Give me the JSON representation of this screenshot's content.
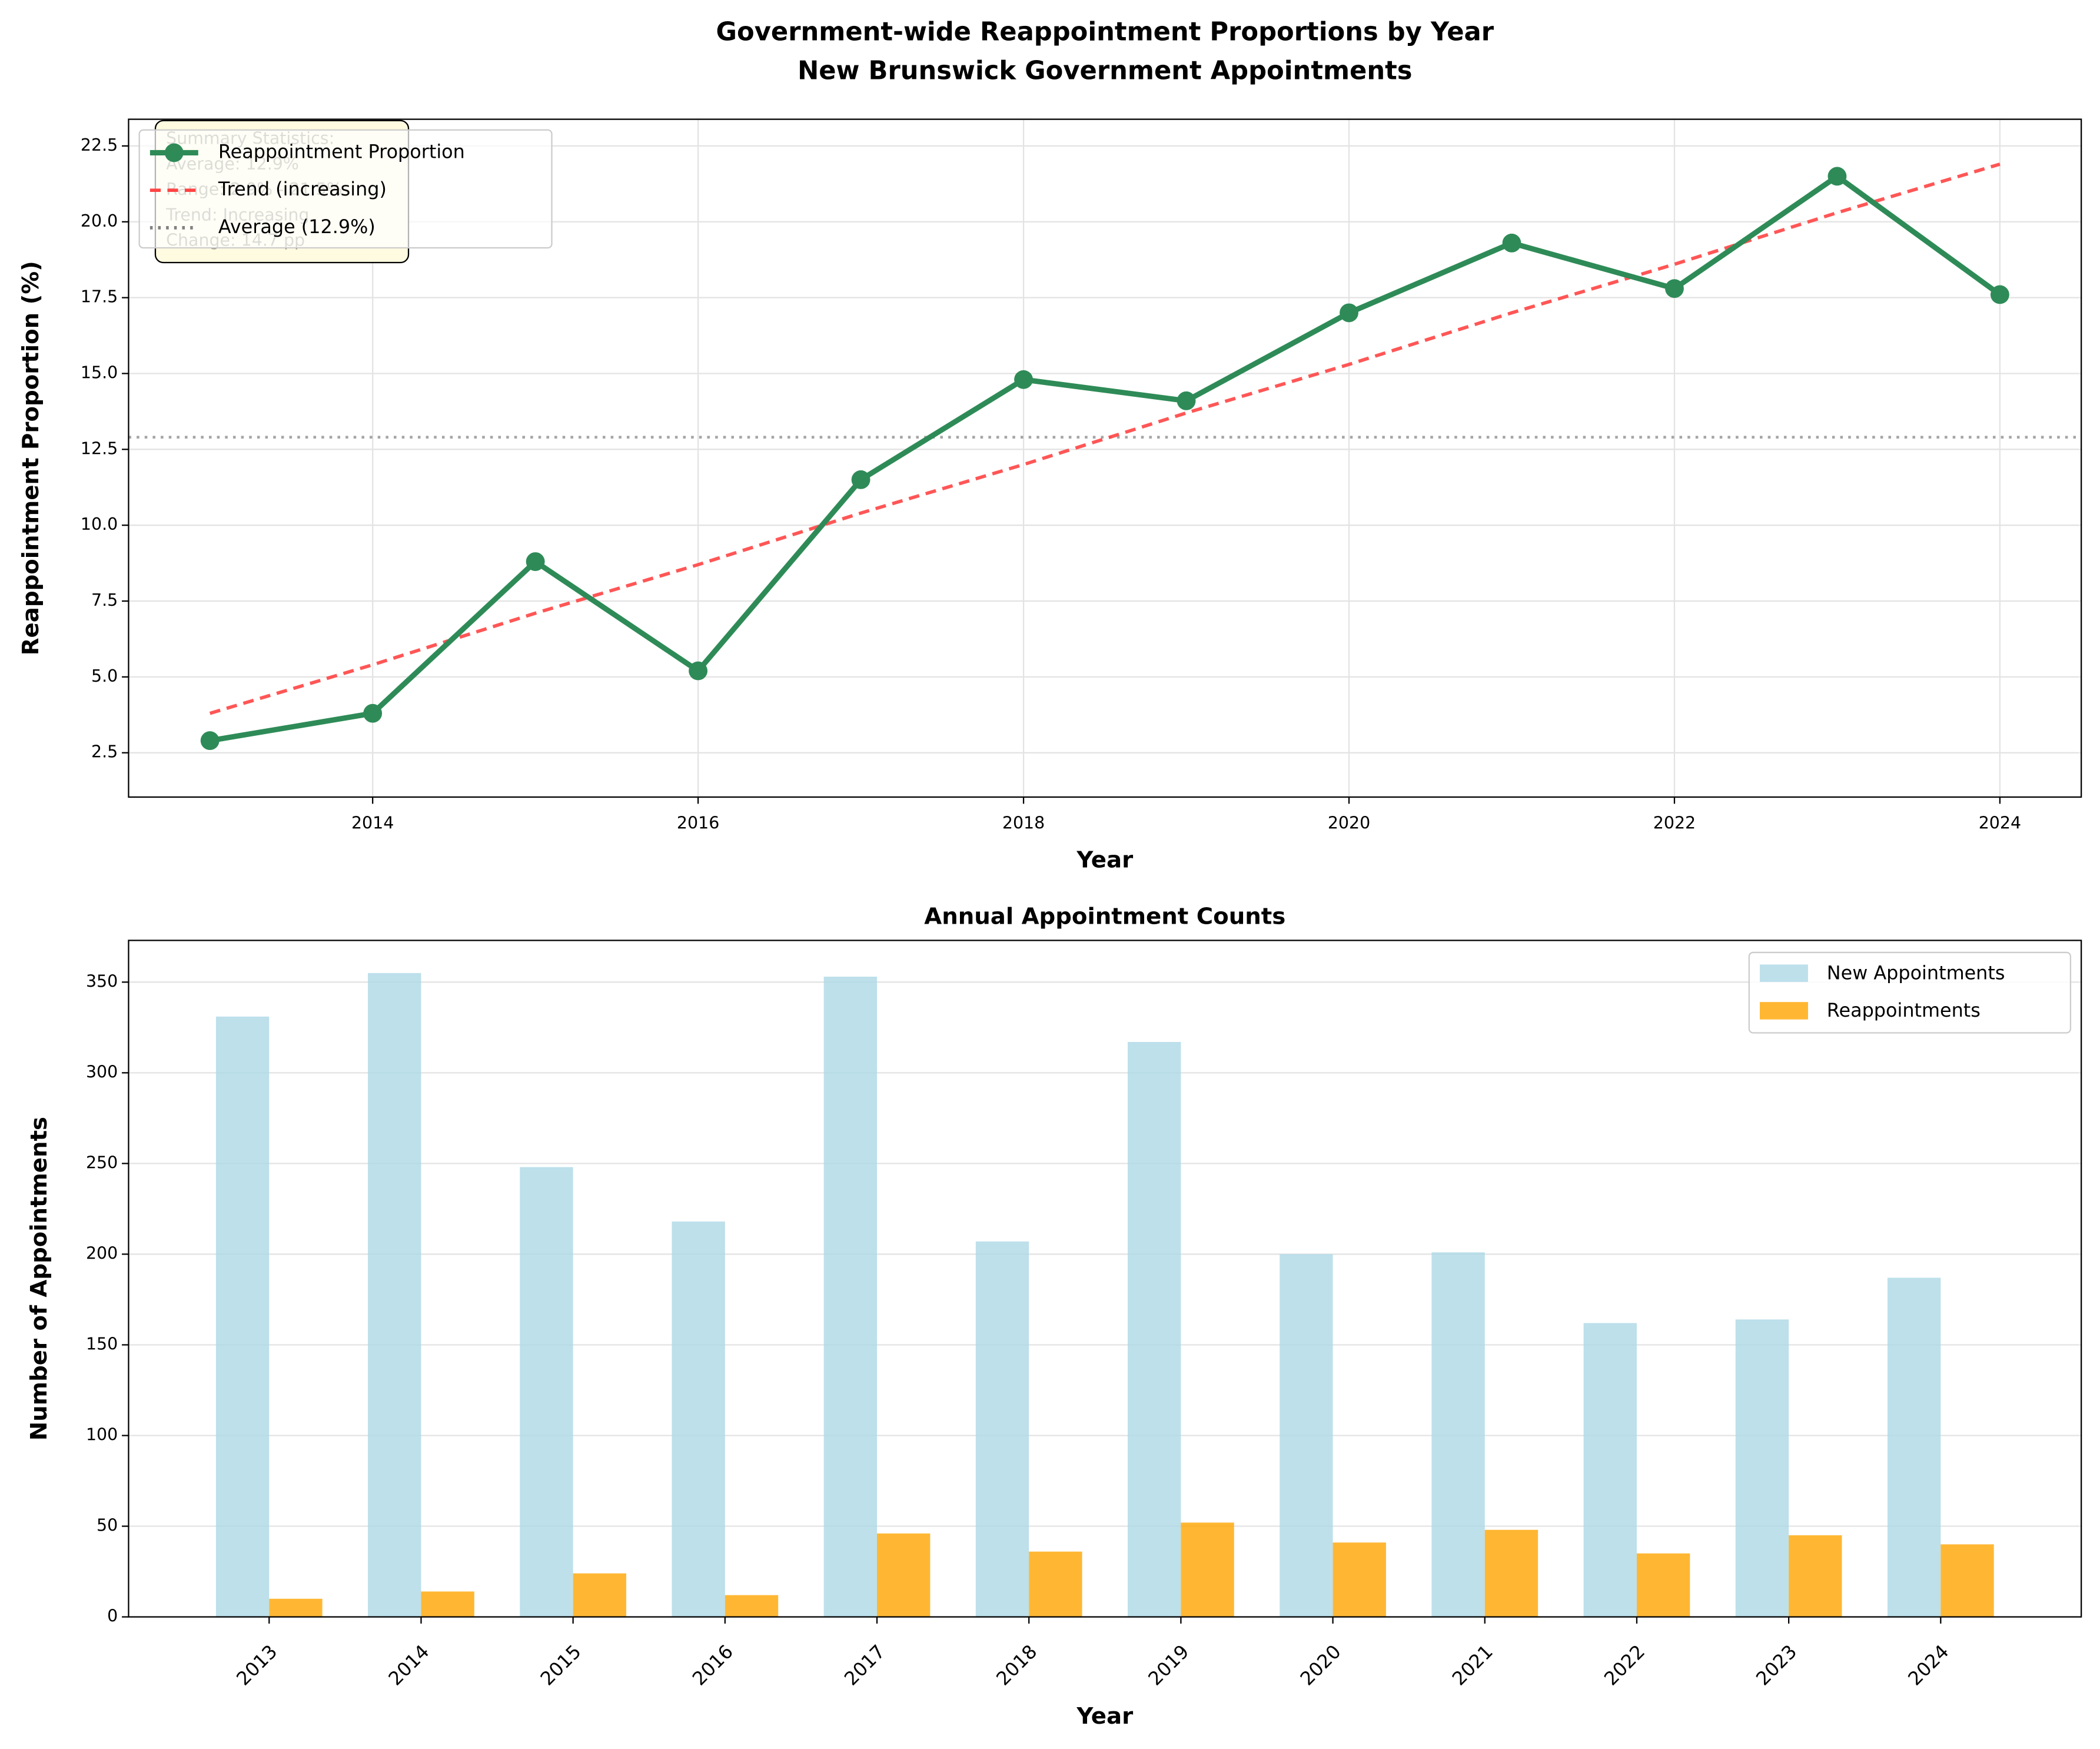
{
  "chart_data": [
    {
      "type": "line",
      "title": "Government-wide Reappointment Proportions by Year",
      "subtitle": "New Brunswick Government Appointments",
      "x_label": "Year",
      "y_label": "Reappointment Proportion (%)",
      "x": [
        2013,
        2014,
        2015,
        2016,
        2017,
        2018,
        2019,
        2020,
        2021,
        2022,
        2023,
        2024
      ],
      "series": [
        {
          "name": "Reappointment Proportion",
          "color": "#2e8b57",
          "marker": true,
          "linestyle": "solid",
          "values": [
            2.9,
            3.8,
            8.8,
            5.2,
            11.5,
            14.8,
            14.1,
            17.0,
            19.3,
            17.8,
            21.5,
            17.6
          ]
        },
        {
          "name": "Trend (increasing)",
          "color": "#ff4444",
          "marker": false,
          "linestyle": "dashed",
          "values": [
            3.8,
            5.4,
            7.1,
            8.7,
            10.4,
            12.0,
            13.7,
            15.3,
            17.0,
            18.6,
            20.3,
            21.9
          ]
        }
      ],
      "hlines": [
        {
          "name": "Average (12.9%)",
          "color": "#808080",
          "linestyle": "dotted",
          "value": 12.9
        }
      ],
      "annotation": [
        "Summary Statistics:",
        "Average: 12.9%",
        "Range: 2.9% - 21.5%",
        "Trend: Increasing",
        "Change: 14.7 pp"
      ],
      "xlim": [
        2012.5,
        2024.5
      ],
      "xticks": [
        2014,
        2016,
        2018,
        2020,
        2022,
        2024
      ],
      "ylim": [
        1.04,
        23.38
      ],
      "yticks": [
        2.5,
        {
          "value": 5,
          "label": "5.0"
        },
        7.5,
        {
          "value": 10,
          "label": "10.0"
        },
        12.5,
        {
          "value": 15,
          "label": "15.0"
        },
        17.5,
        {
          "value": 20,
          "label": "20.0"
        },
        22.5
      ],
      "grid": true,
      "legend": "upper-left"
    },
    {
      "type": "bar",
      "title": "Annual Appointment Counts",
      "x_label": "Year",
      "y_label": "Number of Appointments",
      "categories": [
        "2013",
        "2014",
        "2015",
        "2016",
        "2017",
        "2018",
        "2019",
        "2020",
        "2021",
        "2022",
        "2023",
        "2024"
      ],
      "series": [
        {
          "name": "New Appointments",
          "color": "#add8e6",
          "values": [
            331,
            355,
            248,
            218,
            353,
            207,
            317,
            200,
            201,
            162,
            164,
            187
          ]
        },
        {
          "name": "Reappointments",
          "color": "#ffa500",
          "values": [
            10,
            14,
            24,
            12,
            46,
            36,
            52,
            41,
            48,
            35,
            45,
            40
          ]
        }
      ],
      "ylim": [
        0,
        373
      ],
      "yticks": [
        0,
        50,
        100,
        150,
        200,
        250,
        300,
        350
      ],
      "grid": true,
      "legend": "upper-right"
    }
  ]
}
